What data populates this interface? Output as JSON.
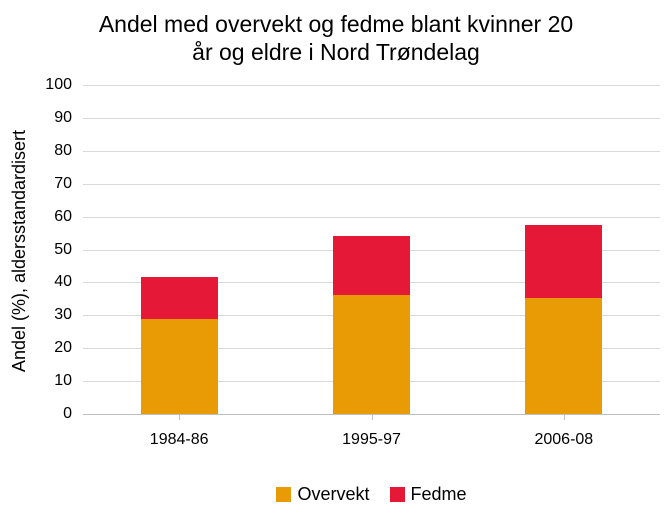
{
  "chart_data": {
    "type": "bar",
    "stacked": true,
    "title": "Andel med overvekt og fedme blant kvinner 20 år og eldre i Nord Trøndelag",
    "title_lines": [
      "Andel med overvekt og fedme blant kvinner 20",
      "år og eldre i Nord Trøndelag"
    ],
    "ylabel": "Andel (%), aldersstandardisert",
    "xlabel": "",
    "categories": [
      "1984-86",
      "1995-97",
      "2006-08"
    ],
    "series": [
      {
        "name": "Overvekt",
        "color": "#E89B05",
        "values": [
          28.9,
          36.3,
          35.3
        ]
      },
      {
        "name": "Fedme",
        "color": "#E51937",
        "values": [
          12.6,
          17.7,
          22.0
        ]
      }
    ],
    "ylim": [
      0,
      100
    ],
    "yticks": [
      0,
      10,
      20,
      30,
      40,
      50,
      60,
      70,
      80,
      90,
      100
    ],
    "grid": true,
    "gridline_color": "#D9D9D9",
    "axis_color": "#BFBFBF",
    "text_color": "#000000",
    "background_color": "#FFFFFF",
    "legend_position": "bottom"
  }
}
